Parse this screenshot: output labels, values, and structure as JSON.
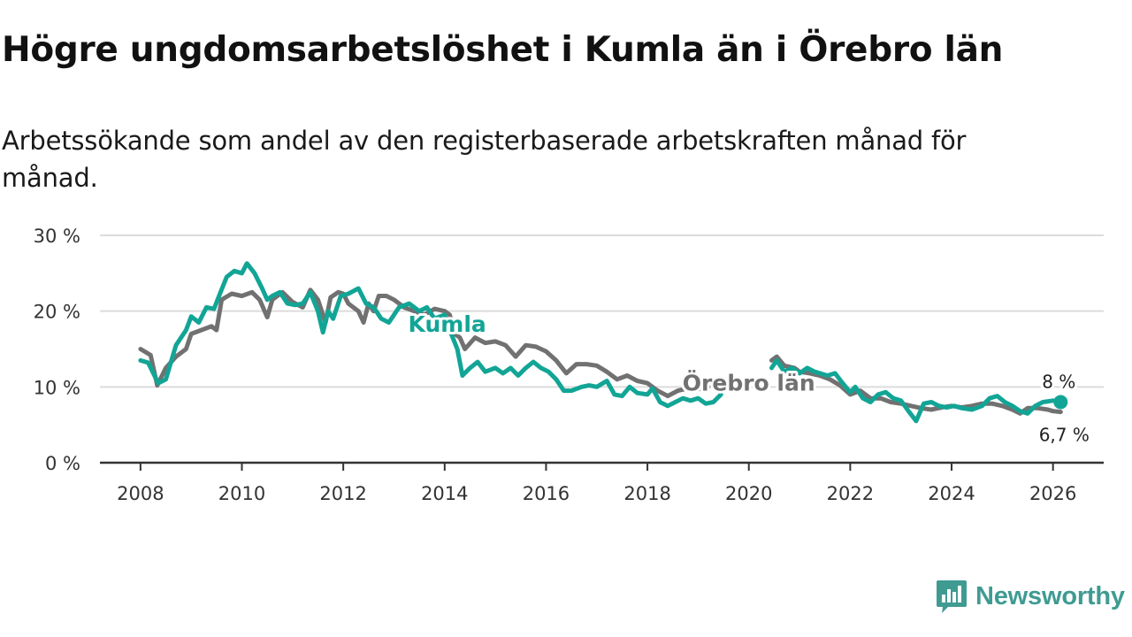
{
  "title": "Högre ungdomsarbetslöshet i Kumla än i Örebro län",
  "subtitle": "Arbetssökande som andel av den registerbaserade arbetskraften månad för månad.",
  "brand": {
    "name": "Newsworthy",
    "icon": "bar-chart-logo-icon"
  },
  "colors": {
    "kumla": "#12a596",
    "orebro": "#717171",
    "grid": "#dcdcdc",
    "axis": "#333333"
  },
  "chart_data": {
    "type": "line",
    "title": "Högre ungdomsarbetslöshet i Kumla än i Örebro län",
    "xlabel": "",
    "ylabel": "",
    "xlim": [
      2007.2,
      2027.0
    ],
    "ylim": [
      0,
      30
    ],
    "yticks": [
      0,
      10,
      20,
      30
    ],
    "ytick_labels": [
      "0 %",
      "10 %",
      "20 %",
      "30 %"
    ],
    "xticks": [
      2008,
      2010,
      2012,
      2014,
      2016,
      2018,
      2020,
      2022,
      2024,
      2026
    ],
    "xtick_labels": [
      "2008",
      "2010",
      "2012",
      "2014",
      "2016",
      "2018",
      "2020",
      "2022",
      "2024",
      "2026"
    ],
    "grid": true,
    "series": [
      {
        "name": "Örebro län",
        "label": "Örebro län",
        "end_label": "6,7 %",
        "points": [
          [
            2008.0,
            15.0
          ],
          [
            2008.2,
            14.2
          ],
          [
            2008.33,
            10.2
          ],
          [
            2008.5,
            12.5
          ],
          [
            2008.7,
            14.0
          ],
          [
            2008.9,
            15.0
          ],
          [
            2009.0,
            17.0
          ],
          [
            2009.2,
            17.5
          ],
          [
            2009.4,
            18.0
          ],
          [
            2009.5,
            17.5
          ],
          [
            2009.6,
            21.5
          ],
          [
            2009.8,
            22.3
          ],
          [
            2010.0,
            22.0
          ],
          [
            2010.2,
            22.5
          ],
          [
            2010.35,
            21.5
          ],
          [
            2010.5,
            19.2
          ],
          [
            2010.6,
            21.5
          ],
          [
            2010.8,
            22.5
          ],
          [
            2011.0,
            21.2
          ],
          [
            2011.2,
            20.5
          ],
          [
            2011.35,
            22.8
          ],
          [
            2011.5,
            21.5
          ],
          [
            2011.65,
            18.5
          ],
          [
            2011.75,
            21.8
          ],
          [
            2011.9,
            22.5
          ],
          [
            2012.0,
            22.3
          ],
          [
            2012.1,
            21.0
          ],
          [
            2012.3,
            20.0
          ],
          [
            2012.4,
            18.5
          ],
          [
            2012.5,
            21.0
          ],
          [
            2012.6,
            20.0
          ],
          [
            2012.7,
            22.0
          ],
          [
            2012.85,
            22.0
          ],
          [
            2013.0,
            21.5
          ],
          [
            2013.2,
            20.5
          ],
          [
            2013.4,
            20.0
          ],
          [
            2013.6,
            19.5
          ],
          [
            2013.8,
            20.3
          ],
          [
            2014.0,
            20.0
          ],
          [
            2014.1,
            19.5
          ],
          [
            2014.2,
            17.0
          ],
          [
            2014.3,
            16.5
          ],
          [
            2014.4,
            15.0
          ],
          [
            2014.6,
            16.5
          ],
          [
            2014.8,
            15.8
          ],
          [
            2015.0,
            16.0
          ],
          [
            2015.2,
            15.5
          ],
          [
            2015.4,
            14.0
          ],
          [
            2015.6,
            15.5
          ],
          [
            2015.8,
            15.3
          ],
          [
            2016.0,
            14.7
          ],
          [
            2016.2,
            13.5
          ],
          [
            2016.4,
            11.8
          ],
          [
            2016.6,
            13.0
          ],
          [
            2016.8,
            13.0
          ],
          [
            2017.0,
            12.8
          ],
          [
            2017.2,
            12.0
          ],
          [
            2017.4,
            11.0
          ],
          [
            2017.6,
            11.5
          ],
          [
            2017.8,
            10.8
          ],
          [
            2018.0,
            10.5
          ],
          [
            2018.2,
            9.5
          ],
          [
            2018.4,
            8.8
          ],
          [
            2018.6,
            9.5
          ],
          [
            2018.8,
            9.8
          ],
          [
            2019.0,
            9.7
          ],
          [
            2019.2,
            10.0
          ],
          [
            2020.45,
            13.5
          ],
          [
            2020.55,
            14.0
          ],
          [
            2020.7,
            12.8
          ],
          [
            2020.9,
            12.5
          ],
          [
            2021.0,
            12.0
          ],
          [
            2021.2,
            11.8
          ],
          [
            2021.4,
            11.5
          ],
          [
            2021.6,
            11.0
          ],
          [
            2021.8,
            10.2
          ],
          [
            2022.0,
            9.0
          ],
          [
            2022.2,
            9.5
          ],
          [
            2022.4,
            8.5
          ],
          [
            2022.6,
            8.5
          ],
          [
            2022.8,
            8.0
          ],
          [
            2023.0,
            7.8
          ],
          [
            2023.2,
            7.5
          ],
          [
            2023.4,
            7.2
          ],
          [
            2023.6,
            7.0
          ],
          [
            2023.8,
            7.3
          ],
          [
            2024.0,
            7.5
          ],
          [
            2024.2,
            7.3
          ],
          [
            2024.4,
            7.5
          ],
          [
            2024.6,
            7.8
          ],
          [
            2024.8,
            7.8
          ],
          [
            2025.0,
            7.5
          ],
          [
            2025.2,
            7.0
          ],
          [
            2025.35,
            6.5
          ],
          [
            2025.5,
            7.2
          ],
          [
            2025.7,
            7.2
          ],
          [
            2025.9,
            7.0
          ],
          [
            2026.0,
            6.8
          ],
          [
            2026.15,
            6.7
          ]
        ]
      },
      {
        "name": "Kumla",
        "label": "Kumla",
        "end_label": "8 %",
        "points": [
          [
            2008.0,
            13.5
          ],
          [
            2008.15,
            13.2
          ],
          [
            2008.35,
            10.5
          ],
          [
            2008.5,
            11.0
          ],
          [
            2008.7,
            15.5
          ],
          [
            2008.9,
            17.5
          ],
          [
            2009.0,
            19.3
          ],
          [
            2009.15,
            18.5
          ],
          [
            2009.3,
            20.5
          ],
          [
            2009.45,
            20.3
          ],
          [
            2009.55,
            22.0
          ],
          [
            2009.7,
            24.5
          ],
          [
            2009.85,
            25.3
          ],
          [
            2010.0,
            25.0
          ],
          [
            2010.1,
            26.3
          ],
          [
            2010.25,
            25.0
          ],
          [
            2010.4,
            23.0
          ],
          [
            2010.5,
            21.5
          ],
          [
            2010.6,
            22.0
          ],
          [
            2010.75,
            22.5
          ],
          [
            2010.9,
            21.0
          ],
          [
            2011.05,
            20.8
          ],
          [
            2011.2,
            21.0
          ],
          [
            2011.35,
            22.5
          ],
          [
            2011.5,
            20.0
          ],
          [
            2011.6,
            17.2
          ],
          [
            2011.7,
            20.0
          ],
          [
            2011.8,
            19.0
          ],
          [
            2011.95,
            22.0
          ],
          [
            2012.1,
            22.3
          ],
          [
            2012.3,
            23.0
          ],
          [
            2012.45,
            21.0
          ],
          [
            2012.6,
            20.5
          ],
          [
            2012.75,
            19.0
          ],
          [
            2012.9,
            18.5
          ],
          [
            2013.1,
            20.5
          ],
          [
            2013.3,
            21.0
          ],
          [
            2013.5,
            20.0
          ],
          [
            2013.65,
            20.5
          ],
          [
            2013.8,
            19.0
          ],
          [
            2014.0,
            19.5
          ],
          [
            2014.1,
            17.5
          ],
          [
            2014.25,
            15.0
          ],
          [
            2014.35,
            11.5
          ],
          [
            2014.5,
            12.5
          ],
          [
            2014.65,
            13.3
          ],
          [
            2014.8,
            12.0
          ],
          [
            2015.0,
            12.5
          ],
          [
            2015.15,
            11.8
          ],
          [
            2015.3,
            12.5
          ],
          [
            2015.45,
            11.5
          ],
          [
            2015.6,
            12.5
          ],
          [
            2015.75,
            13.3
          ],
          [
            2015.9,
            12.5
          ],
          [
            2016.05,
            12.0
          ],
          [
            2016.2,
            11.0
          ],
          [
            2016.35,
            9.5
          ],
          [
            2016.5,
            9.5
          ],
          [
            2016.7,
            10.0
          ],
          [
            2016.85,
            10.2
          ],
          [
            2017.0,
            10.0
          ],
          [
            2017.2,
            10.8
          ],
          [
            2017.35,
            9.0
          ],
          [
            2017.5,
            8.8
          ],
          [
            2017.65,
            10.0
          ],
          [
            2017.8,
            9.2
          ],
          [
            2018.0,
            9.0
          ],
          [
            2018.1,
            9.8
          ],
          [
            2018.25,
            8.0
          ],
          [
            2018.4,
            7.5
          ],
          [
            2018.55,
            8.0
          ],
          [
            2018.7,
            8.5
          ],
          [
            2018.85,
            8.2
          ],
          [
            2019.0,
            8.5
          ],
          [
            2019.15,
            7.8
          ],
          [
            2019.3,
            8.0
          ],
          [
            2019.45,
            9.0
          ],
          [
            2020.45,
            12.5
          ],
          [
            2020.55,
            13.5
          ],
          [
            2020.7,
            12.0
          ],
          [
            2020.85,
            12.5
          ],
          [
            2021.0,
            11.8
          ],
          [
            2021.15,
            12.5
          ],
          [
            2021.3,
            12.0
          ],
          [
            2021.55,
            11.5
          ],
          [
            2021.7,
            11.8
          ],
          [
            2021.85,
            10.5
          ],
          [
            2022.0,
            9.3
          ],
          [
            2022.1,
            10.0
          ],
          [
            2022.25,
            8.5
          ],
          [
            2022.4,
            8.0
          ],
          [
            2022.55,
            9.0
          ],
          [
            2022.7,
            9.3
          ],
          [
            2022.85,
            8.5
          ],
          [
            2023.0,
            8.2
          ],
          [
            2023.15,
            6.8
          ],
          [
            2023.3,
            5.5
          ],
          [
            2023.45,
            7.8
          ],
          [
            2023.6,
            8.0
          ],
          [
            2023.75,
            7.5
          ],
          [
            2023.9,
            7.3
          ],
          [
            2024.05,
            7.5
          ],
          [
            2024.2,
            7.2
          ],
          [
            2024.4,
            7.0
          ],
          [
            2024.6,
            7.5
          ],
          [
            2024.75,
            8.5
          ],
          [
            2024.9,
            8.8
          ],
          [
            2025.05,
            8.0
          ],
          [
            2025.2,
            7.5
          ],
          [
            2025.35,
            6.8
          ],
          [
            2025.5,
            6.5
          ],
          [
            2025.65,
            7.5
          ],
          [
            2025.8,
            8.0
          ],
          [
            2026.0,
            8.2
          ],
          [
            2026.15,
            8.0
          ]
        ]
      }
    ]
  }
}
